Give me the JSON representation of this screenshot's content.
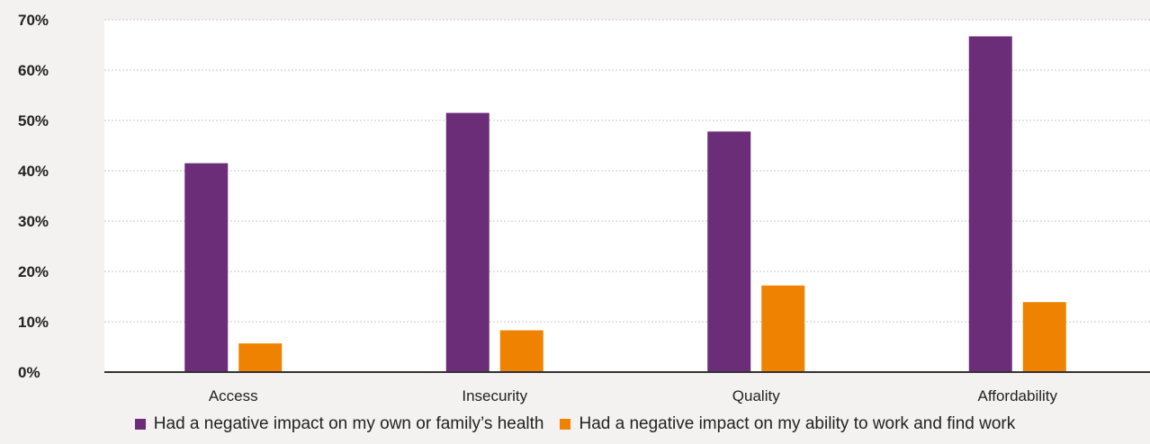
{
  "chart_data": {
    "type": "bar",
    "categories": [
      "Access",
      "Insecurity",
      "Quality",
      "Affordability"
    ],
    "series": [
      {
        "name": "Had a negative impact on my own or family’s health",
        "color": "#6b2d78",
        "values": [
          41.5,
          51.5,
          47.8,
          66.7
        ]
      },
      {
        "name": "Had a negative impact on my ability to work and find work",
        "color": "#ef8200",
        "values": [
          5.7,
          8.3,
          17.2,
          13.9
        ]
      }
    ],
    "ylim": [
      0,
      70
    ],
    "yticks": [
      0,
      10,
      20,
      30,
      40,
      50,
      60,
      70
    ],
    "ytick_labels": [
      "0%",
      "10%",
      "20%",
      "30%",
      "40%",
      "50%",
      "60%",
      "70%"
    ],
    "grid": true,
    "legend": "bottom"
  }
}
